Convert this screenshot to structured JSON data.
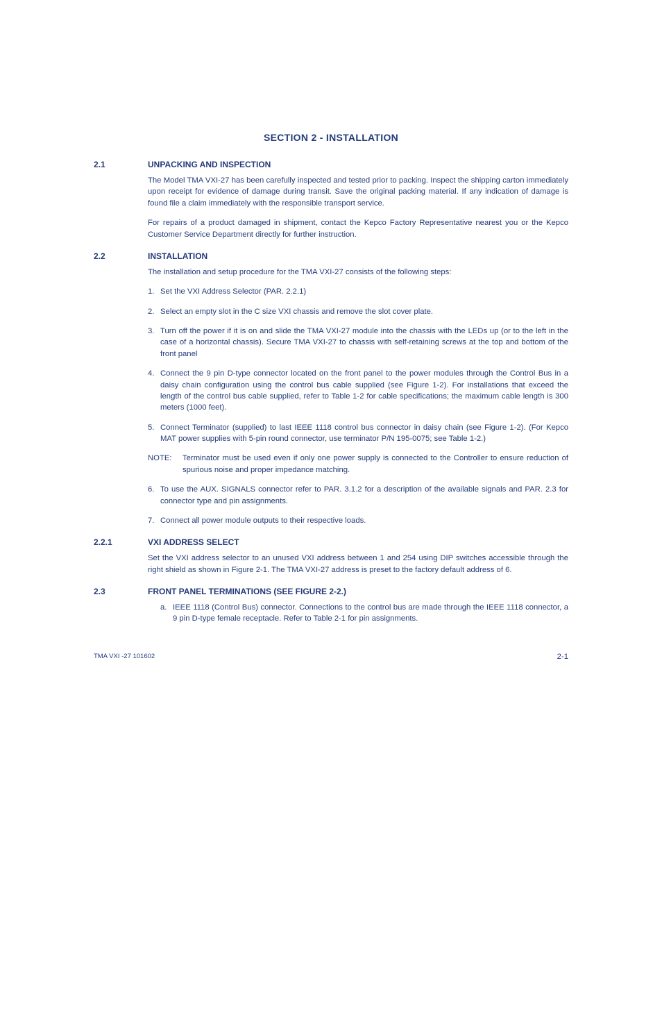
{
  "sectionTitle": "SECTION 2 - INSTALLATION",
  "s21": {
    "num": "2.1",
    "heading": "UNPACKING AND INSPECTION",
    "p1": "The Model TMA VXI-27 has been carefully inspected and tested prior to packing. Inspect the shipping carton immediately upon receipt for evidence of damage during transit. Save the original packing material. If any indication of damage is found file a claim immediately with the responsible transport service.",
    "p2": "For repairs of a product damaged in shipment, contact the Kepco Factory Representative nearest you or the Kepco Customer Service Department directly for further instruction."
  },
  "s22": {
    "num": "2.2",
    "heading": "INSTALLATION",
    "intro": "The installation and setup procedure for the TMA VXI-27 consists of the following steps:",
    "items": {
      "i1": {
        "n": "1.",
        "t": "Set the VXI Address Selector (PAR. 2.2.1)"
      },
      "i2": {
        "n": "2.",
        "t": "Select an empty slot in the C size VXI chassis and remove the slot cover plate."
      },
      "i3": {
        "n": "3.",
        "t": "Turn off the power if it is on and slide the TMA VXI-27 module into the chassis with the LEDs up (or to the left in the case of a horizontal chassis). Secure TMA VXI-27 to chassis with self-retaining screws at the top and bottom of the front panel"
      },
      "i4": {
        "n": "4.",
        "t": "Connect the 9 pin D-type connector located on the front panel to the power modules through the Control Bus in a daisy chain configuration using the control bus cable supplied (see Figure 1-2). For installations that exceed the length of the control bus cable supplied, refer to Table 1-2 for cable specifications; the maximum cable length is 300 meters (1000 feet)."
      },
      "i5": {
        "n": "5.",
        "t": "Connect Terminator (supplied) to last IEEE 1118 control bus connector in daisy chain (see Figure 1-2). (For Kepco MAT power supplies with 5-pin round connector, use terminator P/N 195-0075; see Table 1-2.)"
      },
      "note": {
        "label": "NOTE:",
        "t": "Terminator must be used even if only one power supply is connected to the Controller to ensure reduction of spurious noise and proper impedance matching."
      },
      "i6": {
        "n": "6.",
        "t": "To use the AUX. SIGNALS connector refer to PAR. 3.1.2 for a description of the available signals and PAR. 2.3 for connector type and pin assignments."
      },
      "i7": {
        "n": "7.",
        "t": "Connect all power module outputs to their respective loads."
      }
    }
  },
  "s221": {
    "num": "2.2.1",
    "heading": "VXI ADDRESS SELECT",
    "p1": "Set the VXI address selector to an unused VXI address between 1 and 254 using DIP switches accessible through the right shield as shown in Figure 2-1. The TMA VXI-27 address is preset to the factory default address of 6."
  },
  "s23": {
    "num": "2.3",
    "heading": "FRONT PANEL TERMINATIONS (SEE FIGURE 2-2.)",
    "items": {
      "a": {
        "n": "a.",
        "t": "IEEE 1118 (Control Bus) connector. Connections to the control bus are made through the IEEE 1118 connector, a 9 pin D-type female receptacle. Refer to Table 2-1 for pin assignments."
      }
    }
  },
  "footer": {
    "left": "TMA VXI -27 101602",
    "right": "2-1"
  }
}
